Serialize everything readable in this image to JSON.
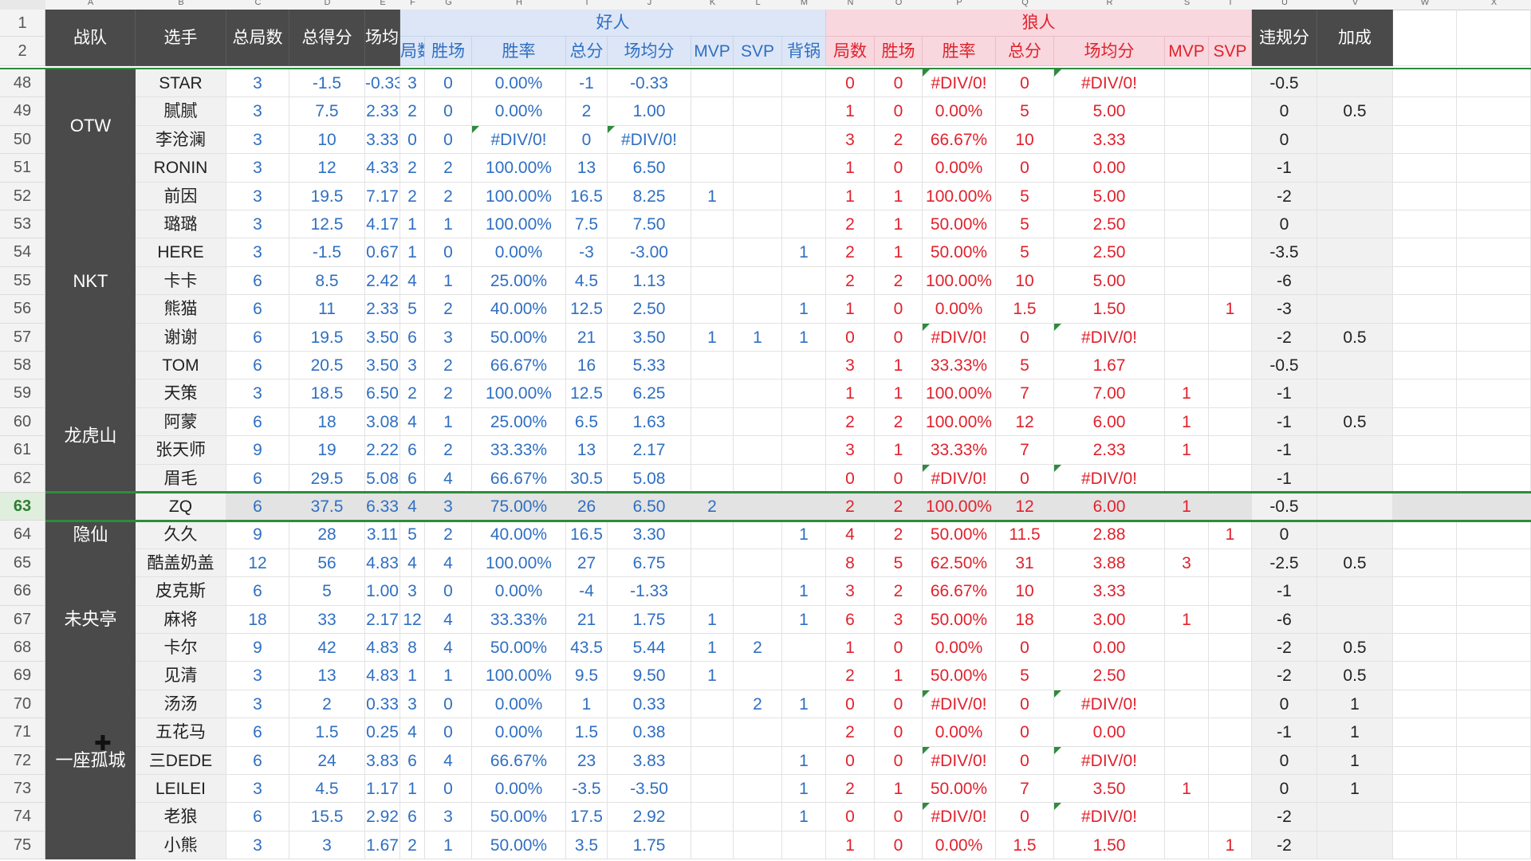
{
  "column_letters": [
    "A",
    "B",
    "C",
    "D",
    "E",
    "F",
    "G",
    "H",
    "I",
    "J",
    "K",
    "L",
    "M",
    "N",
    "O",
    "P",
    "Q",
    "R",
    "S",
    "T",
    "U",
    "V",
    "W",
    "X"
  ],
  "header": {
    "row_numbers": [
      "1",
      "2"
    ],
    "team": "战队",
    "player": "选手",
    "total_games": "总局数",
    "total_score": "总得分",
    "avg_score": "场均分",
    "good_group": "好人",
    "wolf_group": "狼人",
    "good_sub": [
      "局数",
      "胜场",
      "胜率",
      "总分",
      "场均分",
      "MVP",
      "SVP",
      "背锅"
    ],
    "wolf_sub": [
      "局数",
      "胜场",
      "胜率",
      "总分",
      "场均分",
      "MVP",
      "SVP"
    ],
    "penalty": "违规分",
    "bonus": "加成"
  },
  "teams": [
    {
      "name": "OTW",
      "start": 0,
      "span": 4
    },
    {
      "name": "NKT",
      "start": 4,
      "span": 7
    },
    {
      "name": "龙虎山",
      "start": 11,
      "span": 4
    },
    {
      "name": "隐仙",
      "start": 15,
      "span": 3
    },
    {
      "name": "未央亭",
      "start": 18,
      "span": 3
    },
    {
      "name": "一座孤城",
      "start": 21,
      "span": 7
    }
  ],
  "selected_row_index": 15,
  "rows": [
    {
      "n": "48",
      "p": "STAR",
      "c": [
        "3",
        "-1.5",
        "-0.33",
        "3",
        "0",
        "0.00%",
        "-1",
        "-0.33",
        "",
        "",
        "",
        "0",
        "0",
        "#DIV/0!",
        "0",
        "#DIV/0!",
        "",
        "",
        "-0.5",
        ""
      ]
    },
    {
      "n": "49",
      "p": "腻腻",
      "c": [
        "3",
        "7.5",
        "2.33",
        "2",
        "0",
        "0.00%",
        "2",
        "1.00",
        "",
        "",
        "",
        "1",
        "0",
        "0.00%",
        "5",
        "5.00",
        "",
        "",
        "0",
        "0.5"
      ]
    },
    {
      "n": "50",
      "p": "李沧澜",
      "c": [
        "3",
        "10",
        "3.33",
        "0",
        "0",
        "#DIV/0!",
        "0",
        "#DIV/0!",
        "",
        "",
        "",
        "3",
        "2",
        "66.67%",
        "10",
        "3.33",
        "",
        "",
        "0",
        ""
      ]
    },
    {
      "n": "51",
      "p": "RONIN",
      "c": [
        "3",
        "12",
        "4.33",
        "2",
        "2",
        "100.00%",
        "13",
        "6.50",
        "",
        "",
        "",
        "1",
        "0",
        "0.00%",
        "0",
        "0.00",
        "",
        "",
        "-1",
        ""
      ]
    },
    {
      "n": "52",
      "p": "前因",
      "c": [
        "3",
        "19.5",
        "7.17",
        "2",
        "2",
        "100.00%",
        "16.5",
        "8.25",
        "1",
        "",
        "",
        "1",
        "1",
        "100.00%",
        "5",
        "5.00",
        "",
        "",
        "-2",
        ""
      ]
    },
    {
      "n": "53",
      "p": "璐璐",
      "c": [
        "3",
        "12.5",
        "4.17",
        "1",
        "1",
        "100.00%",
        "7.5",
        "7.50",
        "",
        "",
        "",
        "2",
        "1",
        "50.00%",
        "5",
        "2.50",
        "",
        "",
        "0",
        ""
      ]
    },
    {
      "n": "54",
      "p": "HERE",
      "c": [
        "3",
        "-1.5",
        "0.67",
        "1",
        "0",
        "0.00%",
        "-3",
        "-3.00",
        "",
        "",
        "1",
        "2",
        "1",
        "50.00%",
        "5",
        "2.50",
        "",
        "",
        "-3.5",
        ""
      ]
    },
    {
      "n": "55",
      "p": "卡卡",
      "c": [
        "6",
        "8.5",
        "2.42",
        "4",
        "1",
        "25.00%",
        "4.5",
        "1.13",
        "",
        "",
        "",
        "2",
        "2",
        "100.00%",
        "10",
        "5.00",
        "",
        "",
        "-6",
        ""
      ]
    },
    {
      "n": "56",
      "p": "熊猫",
      "c": [
        "6",
        "11",
        "2.33",
        "5",
        "2",
        "40.00%",
        "12.5",
        "2.50",
        "",
        "",
        "1",
        "1",
        "0",
        "0.00%",
        "1.5",
        "1.50",
        "",
        "1",
        "-3",
        ""
      ]
    },
    {
      "n": "57",
      "p": "谢谢",
      "c": [
        "6",
        "19.5",
        "3.50",
        "6",
        "3",
        "50.00%",
        "21",
        "3.50",
        "1",
        "1",
        "1",
        "0",
        "0",
        "#DIV/0!",
        "0",
        "#DIV/0!",
        "",
        "",
        "-2",
        "0.5"
      ]
    },
    {
      "n": "58",
      "p": "TOM",
      "c": [
        "6",
        "20.5",
        "3.50",
        "3",
        "2",
        "66.67%",
        "16",
        "5.33",
        "",
        "",
        "",
        "3",
        "1",
        "33.33%",
        "5",
        "1.67",
        "",
        "",
        "-0.5",
        ""
      ]
    },
    {
      "n": "59",
      "p": "天策",
      "c": [
        "3",
        "18.5",
        "6.50",
        "2",
        "2",
        "100.00%",
        "12.5",
        "6.25",
        "",
        "",
        "",
        "1",
        "1",
        "100.00%",
        "7",
        "7.00",
        "1",
        "",
        "-1",
        ""
      ]
    },
    {
      "n": "60",
      "p": "阿蒙",
      "c": [
        "6",
        "18",
        "3.08",
        "4",
        "1",
        "25.00%",
        "6.5",
        "1.63",
        "",
        "",
        "",
        "2",
        "2",
        "100.00%",
        "12",
        "6.00",
        "1",
        "",
        "-1",
        "0.5"
      ]
    },
    {
      "n": "61",
      "p": "张天师",
      "c": [
        "9",
        "19",
        "2.22",
        "6",
        "2",
        "33.33%",
        "13",
        "2.17",
        "",
        "",
        "",
        "3",
        "1",
        "33.33%",
        "7",
        "2.33",
        "1",
        "",
        "-1",
        ""
      ]
    },
    {
      "n": "62",
      "p": "眉毛",
      "c": [
        "6",
        "29.5",
        "5.08",
        "6",
        "4",
        "66.67%",
        "30.5",
        "5.08",
        "",
        "",
        "",
        "0",
        "0",
        "#DIV/0!",
        "0",
        "#DIV/0!",
        "",
        "",
        "-1",
        ""
      ]
    },
    {
      "n": "63",
      "p": "ZQ",
      "c": [
        "6",
        "37.5",
        "6.33",
        "4",
        "3",
        "75.00%",
        "26",
        "6.50",
        "2",
        "",
        "",
        "2",
        "2",
        "100.00%",
        "12",
        "6.00",
        "1",
        "",
        "-0.5",
        ""
      ]
    },
    {
      "n": "64",
      "p": "久久",
      "c": [
        "9",
        "28",
        "3.11",
        "5",
        "2",
        "40.00%",
        "16.5",
        "3.30",
        "",
        "",
        "1",
        "4",
        "2",
        "50.00%",
        "11.5",
        "2.88",
        "",
        "1",
        "0",
        ""
      ]
    },
    {
      "n": "65",
      "p": "酷盖奶盖",
      "c": [
        "12",
        "56",
        "4.83",
        "4",
        "4",
        "100.00%",
        "27",
        "6.75",
        "",
        "",
        "",
        "8",
        "5",
        "62.50%",
        "31",
        "3.88",
        "3",
        "",
        "-2.5",
        "0.5"
      ]
    },
    {
      "n": "66",
      "p": "皮克斯",
      "c": [
        "6",
        "5",
        "1.00",
        "3",
        "0",
        "0.00%",
        "-4",
        "-1.33",
        "",
        "",
        "1",
        "3",
        "2",
        "66.67%",
        "10",
        "3.33",
        "",
        "",
        "-1",
        ""
      ]
    },
    {
      "n": "67",
      "p": "麻将",
      "c": [
        "18",
        "33",
        "2.17",
        "12",
        "4",
        "33.33%",
        "21",
        "1.75",
        "1",
        "",
        "1",
        "6",
        "3",
        "50.00%",
        "18",
        "3.00",
        "1",
        "",
        "-6",
        ""
      ]
    },
    {
      "n": "68",
      "p": "卡尔",
      "c": [
        "9",
        "42",
        "4.83",
        "8",
        "4",
        "50.00%",
        "43.5",
        "5.44",
        "1",
        "2",
        "",
        "1",
        "0",
        "0.00%",
        "0",
        "0.00",
        "",
        "",
        "-2",
        "0.5"
      ]
    },
    {
      "n": "69",
      "p": "见清",
      "c": [
        "3",
        "13",
        "4.83",
        "1",
        "1",
        "100.00%",
        "9.5",
        "9.50",
        "1",
        "",
        "",
        "2",
        "1",
        "50.00%",
        "5",
        "2.50",
        "",
        "",
        "-2",
        "0.5"
      ]
    },
    {
      "n": "70",
      "p": "汤汤",
      "c": [
        "3",
        "2",
        "0.33",
        "3",
        "0",
        "0.00%",
        "1",
        "0.33",
        "",
        "2",
        "1",
        "0",
        "0",
        "#DIV/0!",
        "0",
        "#DIV/0!",
        "",
        "",
        "0",
        "1"
      ]
    },
    {
      "n": "71",
      "p": "五花马",
      "c": [
        "6",
        "1.5",
        "0.25",
        "4",
        "0",
        "0.00%",
        "1.5",
        "0.38",
        "",
        "",
        "",
        "2",
        "0",
        "0.00%",
        "0",
        "0.00",
        "",
        "",
        "-1",
        "1"
      ]
    },
    {
      "n": "72",
      "p": "三DEDE",
      "c": [
        "6",
        "24",
        "3.83",
        "6",
        "4",
        "66.67%",
        "23",
        "3.83",
        "",
        "",
        "1",
        "0",
        "0",
        "#DIV/0!",
        "0",
        "#DIV/0!",
        "",
        "",
        "0",
        "1"
      ]
    },
    {
      "n": "73",
      "p": "LEILEI",
      "c": [
        "3",
        "4.5",
        "1.17",
        "1",
        "0",
        "0.00%",
        "-3.5",
        "-3.50",
        "",
        "",
        "1",
        "2",
        "1",
        "50.00%",
        "7",
        "3.50",
        "1",
        "",
        "0",
        "1"
      ]
    },
    {
      "n": "74",
      "p": "老狼",
      "c": [
        "6",
        "15.5",
        "2.92",
        "6",
        "3",
        "50.00%",
        "17.5",
        "2.92",
        "",
        "",
        "1",
        "0",
        "0",
        "#DIV/0!",
        "0",
        "#DIV/0!",
        "",
        "",
        "-2",
        ""
      ]
    },
    {
      "n": "75",
      "p": "小熊",
      "c": [
        "3",
        "3",
        "1.67",
        "2",
        "1",
        "50.00%",
        "3.5",
        "1.75",
        "",
        "",
        "",
        "1",
        "0",
        "0.00%",
        "1.5",
        "1.50",
        "",
        "1",
        "-2",
        ""
      ]
    }
  ],
  "colors": {
    "accent_green": "#2e8b3e",
    "good_text": "#2f6fc2",
    "wolf_text": "#e0222d",
    "header_dark": "#4a4a4a"
  },
  "cursor_icon": "move-cursor-icon"
}
